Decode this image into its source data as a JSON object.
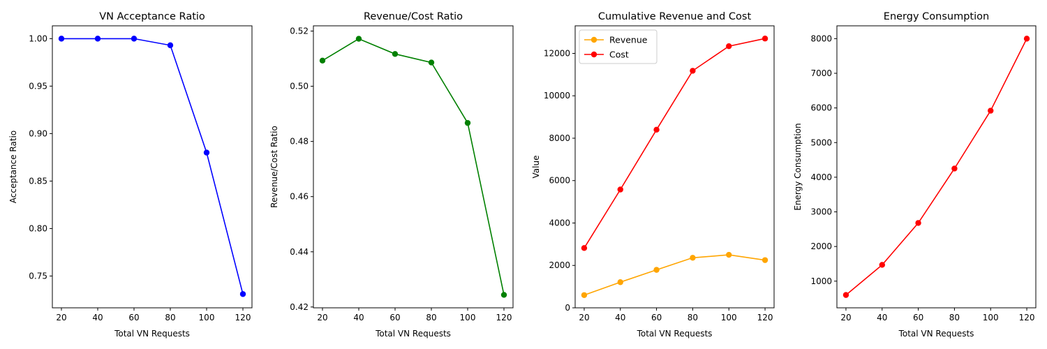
{
  "chart_data": [
    {
      "type": "line",
      "title": "VN Acceptance Ratio",
      "xlabel": "Total VN Requests",
      "ylabel": "Acceptance Ratio",
      "x": [
        20,
        40,
        60,
        80,
        100,
        120
      ],
      "xticks": [
        "20",
        "40",
        "60",
        "80",
        "100",
        "120"
      ],
      "xlim": [
        15,
        125
      ],
      "ylim": [
        0.7165,
        1.0135
      ],
      "yticks": [
        "0.75",
        "0.80",
        "0.85",
        "0.90",
        "0.95",
        "1.00"
      ],
      "ytick_values": [
        0.75,
        0.8,
        0.85,
        0.9,
        0.95,
        1.0
      ],
      "series": [
        {
          "color": "#0000ff",
          "values": [
            1.0,
            1.0,
            1.0,
            0.993,
            0.88,
            0.731
          ]
        }
      ],
      "grid": false
    },
    {
      "type": "line",
      "title": "Revenue/Cost Ratio",
      "xlabel": "Total VN Requests",
      "ylabel": "Revenue/Cost Ratio",
      "x": [
        20,
        40,
        60,
        80,
        100,
        120
      ],
      "xticks": [
        "20",
        "40",
        "60",
        "80",
        "100",
        "120"
      ],
      "xlim": [
        15,
        125
      ],
      "ylim": [
        0.4197,
        0.5219
      ],
      "yticks": [
        "0.42",
        "0.44",
        "0.46",
        "0.48",
        "0.50",
        "0.52"
      ],
      "ytick_values": [
        0.42,
        0.44,
        0.46,
        0.48,
        0.5,
        0.52
      ],
      "series": [
        {
          "color": "#008000",
          "values": [
            0.5093,
            0.5172,
            0.5117,
            0.5086,
            0.4867,
            0.4244
          ]
        }
      ],
      "grid": false
    },
    {
      "type": "line",
      "title": "Cumulative Revenue and Cost",
      "xlabel": "Total VN Requests",
      "ylabel": "Value",
      "x": [
        20,
        40,
        60,
        80,
        100,
        120
      ],
      "xticks": [
        "20",
        "40",
        "60",
        "80",
        "100",
        "120"
      ],
      "xlim": [
        15,
        125
      ],
      "ylim": [
        0,
        13300
      ],
      "yticks": [
        "0",
        "2000",
        "4000",
        "6000",
        "8000",
        "10000",
        "12000"
      ],
      "ytick_values": [
        0,
        2000,
        4000,
        6000,
        8000,
        10000,
        12000
      ],
      "legend": "top-left",
      "series": [
        {
          "name": "Revenue",
          "color": "#ffa500",
          "values": [
            600,
            1210,
            1790,
            2360,
            2500,
            2250
          ]
        },
        {
          "name": "Cost",
          "color": "#ff0000",
          "values": [
            2820,
            5580,
            8400,
            11180,
            12340,
            12700
          ]
        }
      ],
      "grid": false
    },
    {
      "type": "line",
      "title": "Energy Consumption",
      "xlabel": "Total VN Requests",
      "ylabel": "Energy Consumption",
      "x": [
        20,
        40,
        60,
        80,
        100,
        120
      ],
      "xticks": [
        "20",
        "40",
        "60",
        "80",
        "100",
        "120"
      ],
      "xlim": [
        15,
        125
      ],
      "ylim": [
        230,
        8370
      ],
      "yticks": [
        "1000",
        "2000",
        "3000",
        "4000",
        "5000",
        "6000",
        "7000",
        "8000"
      ],
      "ytick_values": [
        1000,
        2000,
        3000,
        4000,
        5000,
        6000,
        7000,
        8000
      ],
      "series": [
        {
          "color": "#ff0000",
          "values": [
            600,
            1470,
            2680,
            4250,
            5920,
            8000
          ]
        }
      ],
      "grid": false
    }
  ]
}
